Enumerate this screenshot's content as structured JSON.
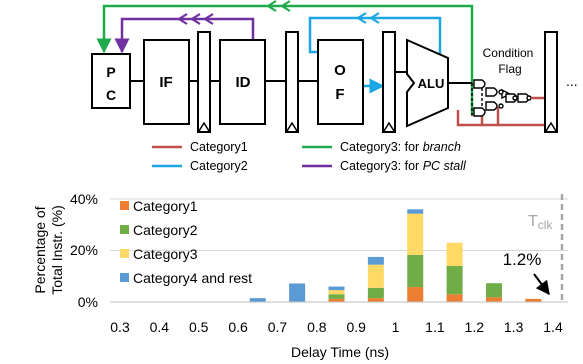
{
  "pipeline": {
    "pc_label_top": "P",
    "pc_label_bottom": "C",
    "if_label": "IF",
    "id_label": "ID",
    "of_label_top": "O",
    "of_label_bottom": "F",
    "alu_label": "ALU",
    "condition_label_top": "Condition",
    "condition_label_bottom": "Flag",
    "ellipsis": "..."
  },
  "path_legend": [
    {
      "label": "Category1",
      "color": "#c0504d"
    },
    {
      "label": "Category2",
      "color": "#1ba6e4"
    },
    {
      "label": "Category3: for ",
      "emph": "branch",
      "color": "#1fab4b"
    },
    {
      "label": "Category3: for ",
      "emph": "PC stall",
      "color": "#7030a0"
    }
  ],
  "colors": {
    "category1": "#ed7d31",
    "category2": "#70ad47",
    "category3": "#ffd966",
    "category4": "#5b9bd5",
    "tclk_line": "#a6a6a6",
    "path_category1": "#c0504d",
    "path_category2": "#1ba6e4",
    "path_branch": "#1fab4b",
    "path_pc_stall": "#7030a0"
  },
  "chart_data": {
    "type": "bar",
    "stacked": true,
    "xlabel": "Delay Time (ns)",
    "ylabel": "Percentage of Total Instr. (%)",
    "ylabel_line1": "Percentage of",
    "ylabel_line2": "Total Instr. (%)",
    "x_ticks": [
      "0.3",
      "0.4",
      "0.5",
      "0.6",
      "0.7",
      "0.8",
      "0.9",
      "1",
      "1.1",
      "1.2",
      "1.3",
      "1.4"
    ],
    "y_ticks": [
      "0%",
      "20%",
      "40%"
    ],
    "ylim": [
      0,
      40
    ],
    "xlim": [
      0.3,
      1.4
    ],
    "grid": "horizontal",
    "legend_placement": "top-left",
    "bin_centers": [
      0.65,
      0.75,
      0.85,
      0.95,
      1.05,
      1.15,
      1.25,
      1.35
    ],
    "series": [
      {
        "name": "Category1",
        "values": [
          0,
          0,
          1.2,
          1.5,
          5.8,
          3.0,
          1.8,
          1.2
        ]
      },
      {
        "name": "Category2",
        "values": [
          0,
          0,
          1.8,
          4.0,
          12.5,
          11.0,
          5.5,
          0
        ]
      },
      {
        "name": "Category3",
        "values": [
          0,
          0,
          1.6,
          9.0,
          16.0,
          9.0,
          0,
          0
        ]
      },
      {
        "name": "Category4 and rest",
        "values": [
          1.5,
          7.2,
          1.4,
          3.0,
          1.7,
          0,
          0,
          0
        ]
      }
    ],
    "annotations": [
      {
        "text": "1.2%"
      },
      {
        "text": "T",
        "sub": "clk"
      }
    ]
  }
}
